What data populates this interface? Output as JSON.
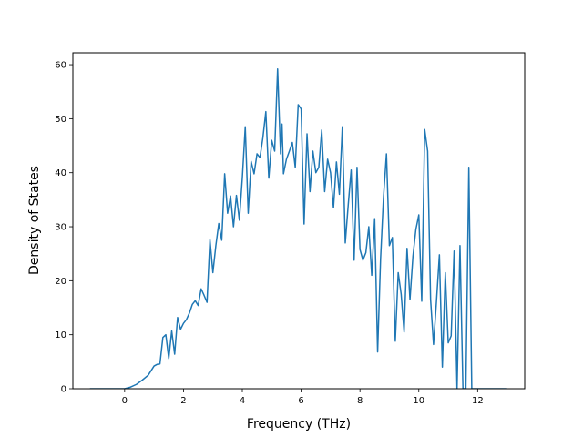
{
  "chart_data": {
    "type": "line",
    "title": "",
    "xlabel": "Frequency (THz)",
    "ylabel": "Density of States",
    "xlim": [
      -1.76,
      13.6
    ],
    "ylim": [
      0,
      62.2
    ],
    "xticks": [
      0,
      2,
      4,
      6,
      8,
      10,
      12
    ],
    "yticks": [
      0,
      10,
      20,
      30,
      40,
      50,
      60
    ],
    "grid": false,
    "series": [
      {
        "name": "",
        "color": "#1f77b4",
        "x": [
          -1.18,
          -0.2,
          0.0,
          0.2,
          0.4,
          0.6,
          0.8,
          1.0,
          1.1,
          1.2,
          1.3,
          1.4,
          1.5,
          1.6,
          1.7,
          1.8,
          1.9,
          2.0,
          2.1,
          2.2,
          2.3,
          2.4,
          2.5,
          2.6,
          2.7,
          2.8,
          2.9,
          3.0,
          3.1,
          3.2,
          3.3,
          3.4,
          3.5,
          3.6,
          3.7,
          3.8,
          3.9,
          4.0,
          4.1,
          4.2,
          4.3,
          4.4,
          4.5,
          4.6,
          4.7,
          4.8,
          4.9,
          5.0,
          5.1,
          5.2,
          5.3,
          5.35,
          5.4,
          5.5,
          5.6,
          5.7,
          5.8,
          5.9,
          6.0,
          6.1,
          6.2,
          6.3,
          6.4,
          6.5,
          6.6,
          6.7,
          6.8,
          6.9,
          7.0,
          7.1,
          7.2,
          7.3,
          7.4,
          7.5,
          7.6,
          7.7,
          7.8,
          7.9,
          8.0,
          8.1,
          8.2,
          8.3,
          8.4,
          8.5,
          8.6,
          8.7,
          8.8,
          8.9,
          9.0,
          9.1,
          9.2,
          9.3,
          9.4,
          9.5,
          9.6,
          9.7,
          9.8,
          9.9,
          10.0,
          10.1,
          10.2,
          10.3,
          10.4,
          10.5,
          10.6,
          10.7,
          10.8,
          10.9,
          11.0,
          11.1,
          11.2,
          11.3,
          11.4,
          11.5,
          11.6,
          11.7,
          11.8,
          11.9,
          12.0,
          13.0
        ],
        "y": [
          0,
          0,
          0,
          0.3,
          0.8,
          1.6,
          2.5,
          4.2,
          4.5,
          4.6,
          9.5,
          10.0,
          5.6,
          10.7,
          6.4,
          13.2,
          11.0,
          12.1,
          12.8,
          14.0,
          15.6,
          16.3,
          15.4,
          18.5,
          17.3,
          16.0,
          27.6,
          21.5,
          26.5,
          30.6,
          27.5,
          39.8,
          32.5,
          35.7,
          30.0,
          35.8,
          31.2,
          39.0,
          48.5,
          32.5,
          42.1,
          39.8,
          43.5,
          42.8,
          46.5,
          51.3,
          39.0,
          46.0,
          44.0,
          59.2,
          43.5,
          49.0,
          39.8,
          42.5,
          44.0,
          45.6,
          41.0,
          52.6,
          51.8,
          30.5,
          47.2,
          36.5,
          44.0,
          40.0,
          41.0,
          47.9,
          36.5,
          42.5,
          40.0,
          33.5,
          42.0,
          36.0,
          48.5,
          27.0,
          34.0,
          40.5,
          23.8,
          41.0,
          25.8,
          23.8,
          25.2,
          30.0,
          21.0,
          31.5,
          6.8,
          24.0,
          35.5,
          43.5,
          26.5,
          28.0,
          8.8,
          21.5,
          17.5,
          10.5,
          26.0,
          16.5,
          24.5,
          29.5,
          32.2,
          16.2,
          48.0,
          44.0,
          16.5,
          8.2,
          16.2,
          24.8,
          4.0,
          21.5,
          8.5,
          9.8,
          25.5,
          0,
          26.5,
          0,
          0,
          41.0,
          0,
          0,
          0,
          0
        ]
      }
    ]
  }
}
